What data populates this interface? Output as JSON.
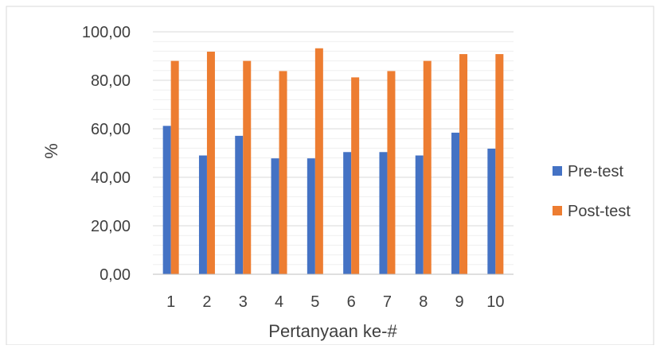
{
  "chart_data": {
    "type": "bar",
    "xlabel": "Pertanyaan ke-#",
    "ylabel": "%",
    "categories": [
      "1",
      "2",
      "3",
      "4",
      "5",
      "6",
      "7",
      "8",
      "9",
      "10"
    ],
    "ylim": [
      0,
      100
    ],
    "yticks": [
      "0,00",
      "20,00",
      "40,00",
      "60,00",
      "80,00",
      "100,00"
    ],
    "grid": true,
    "legend_position": "right",
    "series": [
      {
        "name": "Pre-test",
        "color": "#4472C4",
        "values": [
          61.2,
          49.0,
          57.1,
          47.8,
          47.8,
          50.4,
          50.4,
          49.0,
          58.4,
          51.8
        ]
      },
      {
        "name": "Post-test",
        "color": "#ED7D31",
        "values": [
          88.0,
          91.8,
          88.0,
          83.8,
          93.2,
          81.2,
          83.8,
          88.0,
          90.8,
          90.8
        ]
      }
    ]
  }
}
